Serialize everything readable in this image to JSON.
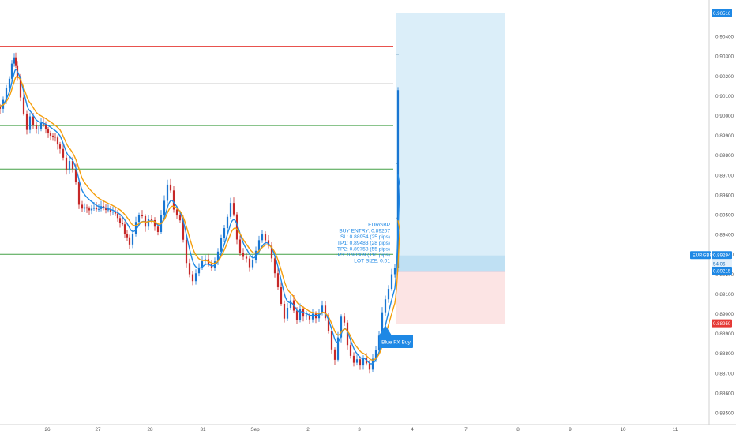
{
  "chart_data": {
    "type": "candlestick",
    "symbol": "EURGBP",
    "x_tick_labels": [
      "26",
      "27",
      "28",
      "31",
      "Sep",
      "2",
      "3",
      "4",
      "7",
      "8",
      "9",
      "10",
      "11"
    ],
    "y_tick_labels": [
      "0.90400",
      "0.90300",
      "0.90200",
      "0.90100",
      "0.90000",
      "0.89900",
      "0.89800",
      "0.89700",
      "0.89600",
      "0.89500",
      "0.89400",
      "0.89300",
      "0.89200",
      "0.89100",
      "0.89000",
      "0.88900",
      "0.88800",
      "0.88700",
      "0.88600",
      "0.88500"
    ],
    "ylim": [
      0.8846,
      0.9052
    ],
    "price_labels": {
      "top": "0.90516",
      "current": "0.89294",
      "countdown": "54:06",
      "entry": "0.89215",
      "stop": "0.88950",
      "symbol_tag": "EURGBP"
    },
    "horizontal_levels": [
      {
        "price": 0.9035,
        "color": "#e53935"
      },
      {
        "price": 0.9016,
        "color": "#333333"
      },
      {
        "price": 0.8995,
        "color": "#43a047"
      },
      {
        "price": 0.8973,
        "color": "#43a047"
      },
      {
        "price": 0.893,
        "color": "#43a047"
      }
    ],
    "position": {
      "entry": 0.89215,
      "stop_loss": 0.8895,
      "target": 0.90516,
      "current": 0.89294,
      "profit_color": "#dbeef9",
      "loss_color": "#fce4e4"
    },
    "annotation": {
      "lines": [
        "EURGBP",
        "BUY ENTRY: 0.89207",
        "SL: 0.88954 (25 pips)",
        "TP1: 0.89483 (28 pips)",
        "TP2: 0.89758 (55 pips)",
        "TP3: 0.90309 (110 pips)",
        "LOT SIZE: 0.01"
      ]
    },
    "signal_label": "Blue FX Buy",
    "series": [
      {
        "kind": "ema",
        "color": "#1e88e5"
      },
      {
        "kind": "ema",
        "color": "#f59e0b"
      }
    ],
    "colors": {
      "up": "#1976d2",
      "down": "#c62828",
      "axis_text": "#555555"
    }
  }
}
